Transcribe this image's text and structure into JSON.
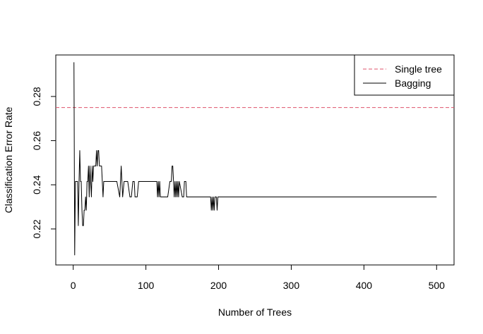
{
  "chart_data": {
    "type": "line",
    "title": "",
    "xlabel": "Number of Trees",
    "ylabel": "Classification Error Rate",
    "xlim": [
      -24,
      524
    ],
    "ylim": [
      0.2037,
      0.2988
    ],
    "xticks": [
      0,
      100,
      200,
      300,
      400,
      500
    ],
    "yticks": [
      0.22,
      0.24,
      0.26,
      0.28
    ],
    "xtick_labels": [
      "0",
      "100",
      "200",
      "300",
      "400",
      "500"
    ],
    "ytick_labels": [
      "0.22",
      "0.24",
      "0.26",
      "0.28"
    ],
    "grid": false,
    "legend": {
      "position": "top-right",
      "entries": [
        "Single tree",
        "Bagging"
      ]
    },
    "series": [
      {
        "name": "Single tree",
        "style": "dashed",
        "color": "#DF536B",
        "y_constant": 0.275
      },
      {
        "name": "Bagging",
        "style": "solid",
        "color": "#000000",
        "x": [
          1,
          2,
          3,
          4,
          5,
          6,
          7,
          8,
          9,
          10,
          11,
          12,
          13,
          14,
          15,
          16,
          17,
          18,
          19,
          20,
          21,
          22,
          23,
          24,
          25,
          26,
          27,
          28,
          29,
          30,
          31,
          32,
          33,
          34,
          35,
          36,
          37,
          38,
          39,
          40,
          41,
          42,
          44,
          46,
          50,
          55,
          60,
          64,
          65,
          66,
          67,
          68,
          70,
          72,
          75,
          78,
          80,
          82,
          84,
          85,
          88,
          90,
          93,
          95,
          100,
          105,
          110,
          115,
          116,
          117,
          118,
          119,
          120,
          121,
          125,
          130,
          133,
          135,
          136,
          137,
          138,
          139,
          140,
          141,
          142,
          143,
          144,
          145,
          146,
          150,
          152,
          153,
          154,
          155,
          156,
          158,
          160,
          170,
          180,
          188,
          189,
          190,
          191,
          192,
          193,
          194,
          195,
          196,
          197,
          198,
          199,
          200,
          250,
          300,
          350,
          400,
          450,
          500
        ],
        "y": [
          0.2955,
          0.2082,
          0.2415,
          0.2415,
          0.2415,
          0.2415,
          0.2215,
          0.2415,
          0.2555,
          0.2415,
          0.2415,
          0.2285,
          0.2215,
          0.2215,
          0.2285,
          0.2285,
          0.2345,
          0.2285,
          0.2415,
          0.2415,
          0.2485,
          0.2345,
          0.2485,
          0.2415,
          0.2345,
          0.2485,
          0.2415,
          0.2485,
          0.2485,
          0.2485,
          0.2485,
          0.2555,
          0.2485,
          0.2555,
          0.2555,
          0.2485,
          0.2485,
          0.2485,
          0.2485,
          0.2415,
          0.2345,
          0.2415,
          0.2415,
          0.2415,
          0.2415,
          0.2415,
          0.2415,
          0.2345,
          0.2415,
          0.2485,
          0.2415,
          0.2345,
          0.2415,
          0.2415,
          0.2415,
          0.2345,
          0.2345,
          0.2415,
          0.2415,
          0.2345,
          0.2345,
          0.2415,
          0.2415,
          0.2415,
          0.2415,
          0.2415,
          0.2415,
          0.2415,
          0.2345,
          0.2415,
          0.2345,
          0.2415,
          0.2345,
          0.2345,
          0.2345,
          0.2345,
          0.2415,
          0.2415,
          0.2485,
          0.2485,
          0.2415,
          0.2345,
          0.2415,
          0.2345,
          0.2415,
          0.2345,
          0.2415,
          0.2345,
          0.2415,
          0.2345,
          0.2345,
          0.2415,
          0.2415,
          0.2415,
          0.2345,
          0.2345,
          0.2345,
          0.2345,
          0.2345,
          0.2345,
          0.2345,
          0.2285,
          0.2345,
          0.2285,
          0.2345,
          0.2285,
          0.2345,
          0.2345,
          0.2345,
          0.2285,
          0.2345,
          0.2345,
          0.2345,
          0.2345,
          0.2345,
          0.2345,
          0.2345,
          0.2345
        ]
      }
    ]
  }
}
